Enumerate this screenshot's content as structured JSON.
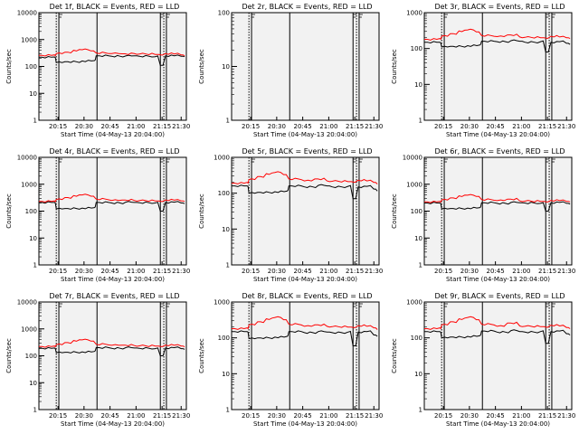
{
  "title_template": "BLACK = Events, RED = LLD",
  "x_axis_label": "Start Time (04-May-13 20:04:00)",
  "y_axis_label": "Counts/sec",
  "colors": {
    "background": "#f2f2f2",
    "events": "#000000",
    "lld": "#ff0000"
  },
  "chart_data": [
    {
      "type": "line",
      "title": "Det 1f, BLACK = Events, RED = LLD",
      "detector": "Det 1f",
      "ylabel": "Counts/sec",
      "ylog": true,
      "ylim": [
        1,
        10000
      ],
      "yticks": [
        "1",
        "10",
        "100",
        "1000",
        "10000"
      ],
      "xticks": [
        "20:15",
        "20:30",
        "20:45",
        "21:00",
        "21:15",
        "21:30"
      ],
      "xlabel": "Start Time (04-May-13 20:04:00)",
      "series": [
        {
          "name": "Events",
          "color": "#000000",
          "x": [
            0,
            9,
            10,
            15,
            25,
            32,
            33,
            42,
            50,
            55,
            58,
            67,
            70,
            73,
            78,
            82,
            84
          ],
          "y": [
            220,
            225,
            140,
            150,
            160,
            165,
            250,
            240,
            245,
            250,
            240,
            230,
            110,
            250,
            250,
            240,
            230
          ]
        },
        {
          "name": "LLD",
          "color": "#ff0000",
          "x": [
            0,
            9,
            10,
            15,
            20,
            25,
            30,
            33,
            42,
            48,
            55,
            58,
            67,
            73,
            78,
            82,
            84
          ],
          "y": [
            260,
            270,
            300,
            340,
            400,
            420,
            380,
            320,
            300,
            295,
            300,
            290,
            280,
            300,
            290,
            270,
            250
          ]
        }
      ]
    },
    {
      "type": "line",
      "title": "Det 2r, BLACK = Events, RED = LLD",
      "detector": "Det 2r",
      "ylabel": "Counts/sec",
      "ylog": true,
      "ylim": [
        1,
        100
      ],
      "yticks": [
        "1",
        "10",
        "100"
      ],
      "xticks": [
        "20:15",
        "20:30",
        "20:45",
        "21:00",
        "21:15",
        "21:30"
      ],
      "xlabel": "Start Time (04-May-13 20:04:00)",
      "series": []
    },
    {
      "type": "line",
      "title": "Det 3r, BLACK = Events, RED = LLD",
      "detector": "Det 3r",
      "ylabel": "Counts/sec",
      "ylog": true,
      "ylim": [
        1,
        1000
      ],
      "yticks": [
        "1",
        "10",
        "100",
        "1000"
      ],
      "xticks": [
        "20:15",
        "20:30",
        "20:45",
        "21:00",
        "21:15",
        "21:30"
      ],
      "xlabel": "Start Time (04-May-13 20:04:00)",
      "series": [
        {
          "name": "Events",
          "color": "#000000",
          "x": [
            0,
            9,
            10,
            15,
            25,
            32,
            33,
            42,
            50,
            55,
            58,
            67,
            70,
            73,
            78,
            82,
            84
          ],
          "y": [
            150,
            150,
            110,
            115,
            120,
            125,
            160,
            155,
            165,
            160,
            150,
            155,
            80,
            150,
            155,
            140,
            130
          ]
        },
        {
          "name": "LLD",
          "color": "#ff0000",
          "x": [
            0,
            9,
            10,
            15,
            20,
            25,
            30,
            33,
            42,
            48,
            55,
            58,
            67,
            73,
            78,
            82,
            84
          ],
          "y": [
            180,
            190,
            220,
            260,
            310,
            330,
            290,
            230,
            215,
            240,
            210,
            205,
            200,
            220,
            210,
            200,
            190
          ]
        }
      ]
    },
    {
      "type": "line",
      "title": "Det 4r, BLACK = Events, RED = LLD",
      "detector": "Det 4r",
      "ylabel": "Counts/sec",
      "ylog": true,
      "ylim": [
        1,
        10000
      ],
      "yticks": [
        "1",
        "10",
        "100",
        "1000",
        "10000"
      ],
      "xticks": [
        "20:15",
        "20:30",
        "20:45",
        "21:00",
        "21:15",
        "21:30"
      ],
      "xlabel": "Start Time (04-May-13 20:04:00)",
      "series": [
        {
          "name": "Events",
          "color": "#000000",
          "x": [
            0,
            9,
            10,
            15,
            25,
            32,
            33,
            42,
            50,
            55,
            58,
            67,
            70,
            73,
            78,
            82,
            84
          ],
          "y": [
            210,
            210,
            120,
            125,
            130,
            135,
            210,
            200,
            215,
            210,
            205,
            200,
            100,
            210,
            215,
            200,
            190
          ]
        },
        {
          "name": "LLD",
          "color": "#ff0000",
          "x": [
            0,
            9,
            10,
            15,
            20,
            25,
            30,
            33,
            42,
            48,
            55,
            58,
            67,
            73,
            78,
            82,
            84
          ],
          "y": [
            230,
            240,
            270,
            320,
            380,
            400,
            360,
            280,
            250,
            260,
            250,
            245,
            240,
            260,
            255,
            240,
            230
          ]
        }
      ]
    },
    {
      "type": "line",
      "title": "Det 5r, BLACK = Events, RED = LLD",
      "detector": "Det 5r",
      "ylabel": "Counts/sec",
      "ylog": true,
      "ylim": [
        1,
        1000
      ],
      "yticks": [
        "1",
        "10",
        "100",
        "1000"
      ],
      "xticks": [
        "20:15",
        "20:30",
        "20:45",
        "21:00",
        "21:15",
        "21:30"
      ],
      "xlabel": "Start Time (04-May-13 20:04:00)",
      "series": [
        {
          "name": "Events",
          "color": "#000000",
          "x": [
            0,
            9,
            10,
            15,
            25,
            32,
            33,
            42,
            50,
            55,
            58,
            67,
            70,
            73,
            78,
            82,
            84
          ],
          "y": [
            160,
            160,
            100,
            105,
            110,
            115,
            160,
            150,
            165,
            160,
            150,
            155,
            70,
            150,
            155,
            130,
            115
          ]
        },
        {
          "name": "LLD",
          "color": "#ff0000",
          "x": [
            0,
            9,
            10,
            15,
            20,
            25,
            30,
            33,
            42,
            48,
            55,
            58,
            67,
            73,
            78,
            82,
            84
          ],
          "y": [
            190,
            200,
            240,
            290,
            350,
            380,
            330,
            250,
            220,
            250,
            220,
            215,
            210,
            230,
            220,
            200,
            180
          ]
        }
      ]
    },
    {
      "type": "line",
      "title": "Det 6r, BLACK = Events, RED = LLD",
      "detector": "Det 6r",
      "ylabel": "Counts/sec",
      "ylog": true,
      "ylim": [
        1,
        10000
      ],
      "yticks": [
        "1",
        "10",
        "100",
        "1000",
        "10000"
      ],
      "xticks": [
        "20:15",
        "20:30",
        "20:45",
        "21:00",
        "21:15",
        "21:30"
      ],
      "xlabel": "Start Time (04-May-13 20:04:00)",
      "series": [
        {
          "name": "Events",
          "color": "#000000",
          "x": [
            0,
            9,
            10,
            15,
            25,
            32,
            33,
            42,
            50,
            55,
            58,
            67,
            70,
            73,
            78,
            82,
            84
          ],
          "y": [
            200,
            200,
            120,
            125,
            130,
            135,
            205,
            195,
            210,
            205,
            200,
            195,
            100,
            205,
            210,
            195,
            185
          ]
        },
        {
          "name": "LLD",
          "color": "#ff0000",
          "x": [
            0,
            9,
            10,
            15,
            20,
            25,
            30,
            33,
            42,
            48,
            55,
            58,
            67,
            73,
            78,
            82,
            84
          ],
          "y": [
            220,
            230,
            260,
            310,
            370,
            390,
            350,
            270,
            245,
            280,
            240,
            235,
            230,
            250,
            245,
            230,
            220
          ]
        }
      ]
    },
    {
      "type": "line",
      "title": "Det 7r, BLACK = Events, RED = LLD",
      "detector": "Det 7r",
      "ylabel": "Counts/sec",
      "ylog": true,
      "ylim": [
        1,
        10000
      ],
      "yticks": [
        "1",
        "10",
        "100",
        "1000",
        "10000"
      ],
      "xticks": [
        "20:15",
        "20:30",
        "20:45",
        "21:00",
        "21:15",
        "21:30"
      ],
      "xlabel": "Start Time (04-May-13 20:04:00)",
      "series": [
        {
          "name": "Events",
          "color": "#000000",
          "x": [
            0,
            9,
            10,
            15,
            25,
            32,
            33,
            42,
            50,
            55,
            58,
            67,
            70,
            73,
            78,
            82,
            84
          ],
          "y": [
            190,
            195,
            130,
            135,
            140,
            145,
            200,
            190,
            200,
            195,
            190,
            185,
            100,
            195,
            200,
            185,
            175
          ]
        },
        {
          "name": "LLD",
          "color": "#ff0000",
          "x": [
            0,
            9,
            10,
            15,
            20,
            25,
            30,
            33,
            42,
            48,
            55,
            58,
            67,
            73,
            78,
            82,
            84
          ],
          "y": [
            220,
            230,
            260,
            310,
            370,
            390,
            350,
            270,
            245,
            250,
            240,
            235,
            230,
            250,
            245,
            230,
            215
          ]
        }
      ]
    },
    {
      "type": "line",
      "title": "Det 8r, BLACK = Events, RED = LLD",
      "detector": "Det 8r",
      "ylabel": "Counts/sec",
      "ylog": true,
      "ylim": [
        1,
        1000
      ],
      "yticks": [
        "1",
        "10",
        "100",
        "1000"
      ],
      "xticks": [
        "20:15",
        "20:30",
        "20:45",
        "21:00",
        "21:15",
        "21:30"
      ],
      "xlabel": "Start Time (04-May-13 20:04:00)",
      "series": [
        {
          "name": "Events",
          "color": "#000000",
          "x": [
            0,
            9,
            10,
            15,
            25,
            32,
            33,
            42,
            50,
            55,
            58,
            67,
            70,
            73,
            78,
            82,
            84
          ],
          "y": [
            150,
            150,
            95,
            100,
            105,
            110,
            150,
            140,
            150,
            145,
            140,
            145,
            60,
            145,
            150,
            120,
            110
          ]
        },
        {
          "name": "LLD",
          "color": "#ff0000",
          "x": [
            0,
            9,
            10,
            15,
            20,
            25,
            30,
            33,
            42,
            48,
            55,
            58,
            67,
            73,
            78,
            82,
            84
          ],
          "y": [
            180,
            190,
            230,
            280,
            340,
            370,
            320,
            240,
            210,
            230,
            210,
            205,
            200,
            220,
            210,
            190,
            170
          ]
        }
      ]
    },
    {
      "type": "line",
      "title": "Det 9r, BLACK = Events, RED = LLD",
      "detector": "Det 9r",
      "ylabel": "Counts/sec",
      "ylog": true,
      "ylim": [
        1,
        1000
      ],
      "yticks": [
        "1",
        "10",
        "100",
        "1000"
      ],
      "xticks": [
        "20:15",
        "20:30",
        "20:45",
        "21:00",
        "21:15",
        "21:30"
      ],
      "xlabel": "Start Time (04-May-13 20:04:00)",
      "series": [
        {
          "name": "Events",
          "color": "#000000",
          "x": [
            0,
            9,
            10,
            15,
            25,
            32,
            33,
            42,
            50,
            55,
            58,
            67,
            70,
            73,
            78,
            82,
            84
          ],
          "y": [
            150,
            150,
            100,
            105,
            110,
            115,
            155,
            145,
            160,
            150,
            145,
            150,
            70,
            150,
            155,
            130,
            120
          ]
        },
        {
          "name": "LLD",
          "color": "#ff0000",
          "x": [
            0,
            9,
            10,
            15,
            20,
            25,
            30,
            33,
            42,
            48,
            55,
            58,
            67,
            73,
            78,
            82,
            84
          ],
          "y": [
            180,
            190,
            230,
            280,
            340,
            370,
            320,
            240,
            210,
            260,
            215,
            210,
            205,
            225,
            215,
            195,
            180
          ]
        }
      ]
    }
  ]
}
